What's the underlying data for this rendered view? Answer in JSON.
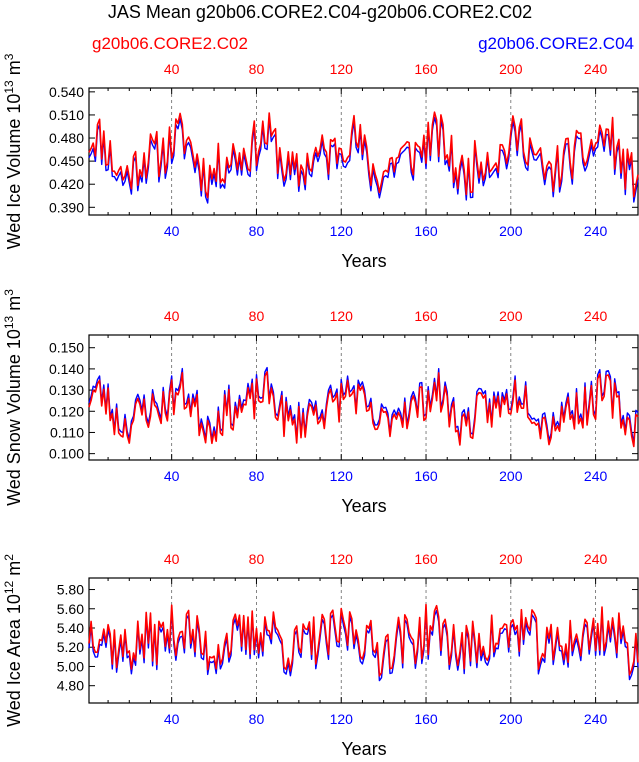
{
  "title": "JAS Mean g20b06.CORE2.C04-g20b06.CORE2.C02",
  "legend": {
    "left_label": "g20b06.CORE2.C02",
    "left_color": "#ff0000",
    "right_label": "g20b06.CORE2.C04",
    "right_color": "#0000ff"
  },
  "chart_data": [
    {
      "type": "line",
      "ylabel": "Wed Ice Volume",
      "yunit": "10",
      "yunit_exp": "13",
      "yunit_suffix": "m",
      "yunit_suffix_exp": "3",
      "xlabel": "Years",
      "xlim": [
        1,
        260
      ],
      "ylim": [
        0.38,
        0.545
      ],
      "yticks": [
        "0.540",
        "0.510",
        "0.480",
        "0.450",
        "0.420",
        "0.390"
      ],
      "xticks": [
        "40",
        "80",
        "120",
        "160",
        "200",
        "240"
      ],
      "series": [
        {
          "name": "g20b06.CORE2.C04",
          "color": "#0000ff",
          "base": 0.455,
          "amp": 0.04,
          "noise": 0.032,
          "seed": 11,
          "offset": -0.004
        },
        {
          "name": "g20b06.CORE2.C02",
          "color": "#ff0000",
          "base": 0.458,
          "amp": 0.04,
          "noise": 0.032,
          "seed": 11,
          "offset": 0.0
        }
      ]
    },
    {
      "type": "line",
      "ylabel": "Wed Snow Volume",
      "yunit": "10",
      "yunit_exp": "13",
      "yunit_suffix": "m",
      "yunit_suffix_exp": "3",
      "xlabel": "Years",
      "xlim": [
        1,
        260
      ],
      "ylim": [
        0.097,
        0.156
      ],
      "yticks": [
        "0.150",
        "0.140",
        "0.130",
        "0.120",
        "0.110",
        "0.100"
      ],
      "xticks": [
        "40",
        "80",
        "120",
        "160",
        "200",
        "240"
      ],
      "series": [
        {
          "name": "g20b06.CORE2.C04",
          "color": "#0000ff",
          "base": 0.122,
          "amp": 0.012,
          "noise": 0.01,
          "seed": 23,
          "offset": 0.001
        },
        {
          "name": "g20b06.CORE2.C02",
          "color": "#ff0000",
          "base": 0.121,
          "amp": 0.012,
          "noise": 0.01,
          "seed": 23,
          "offset": 0.0
        }
      ]
    },
    {
      "type": "line",
      "ylabel": "Wed Ice Area",
      "yunit": "10",
      "yunit_exp": "12",
      "yunit_suffix": "m",
      "yunit_suffix_exp": "2",
      "xlabel": "Years",
      "xlim": [
        1,
        260
      ],
      "ylim": [
        4.62,
        5.92
      ],
      "yticks": [
        "5.80",
        "5.60",
        "5.40",
        "5.20",
        "5.00",
        "4.80"
      ],
      "xticks": [
        "40",
        "80",
        "120",
        "160",
        "200",
        "240"
      ],
      "series": [
        {
          "name": "g20b06.CORE2.C04",
          "color": "#0000ff",
          "base": 5.27,
          "amp": 0.18,
          "noise": 0.28,
          "seed": 37,
          "offset": -0.03
        },
        {
          "name": "g20b06.CORE2.C02",
          "color": "#ff0000",
          "base": 5.29,
          "amp": 0.18,
          "noise": 0.28,
          "seed": 37,
          "offset": 0.0
        }
      ]
    }
  ]
}
